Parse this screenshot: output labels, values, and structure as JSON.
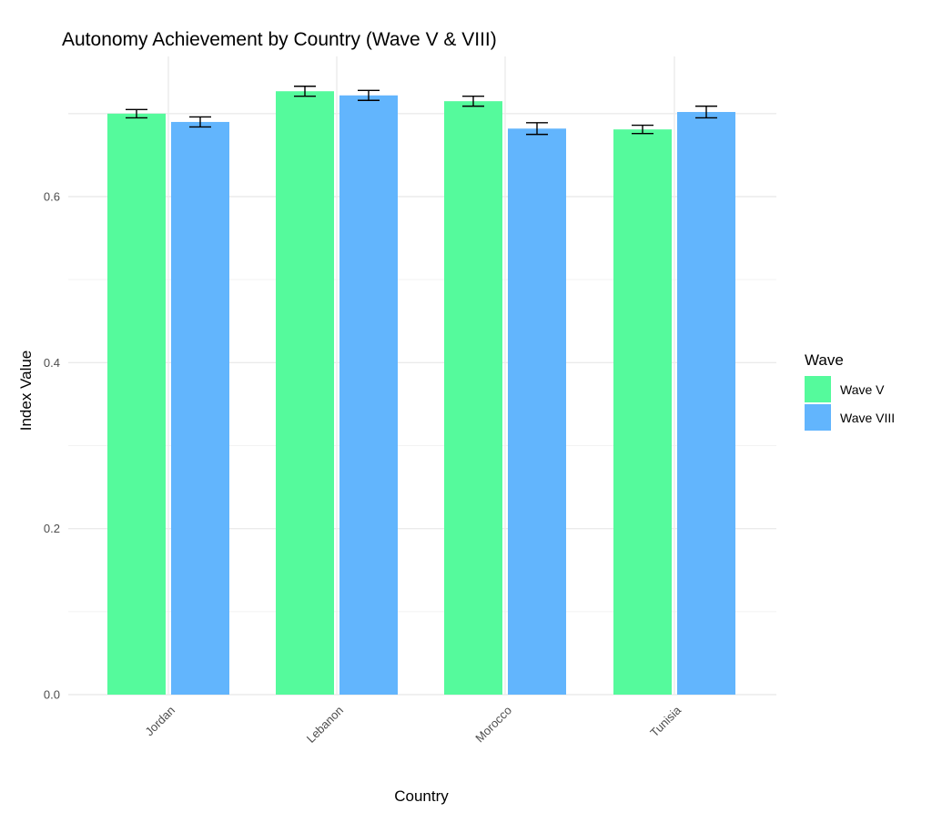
{
  "chart_data": {
    "type": "bar",
    "title": "Autonomy Achievement by Country (Wave V & VIII)",
    "xlabel": "Country",
    "ylabel": "Index Value",
    "categories": [
      "Jordan",
      "Lebanon",
      "Morocco",
      "Tunisia"
    ],
    "series": [
      {
        "name": "Wave V",
        "color": "#55fa9c",
        "values": [
          0.7,
          0.727,
          0.715,
          0.681
        ],
        "error_low": [
          0.695,
          0.721,
          0.709,
          0.676
        ],
        "error_high": [
          0.705,
          0.733,
          0.721,
          0.686
        ]
      },
      {
        "name": "Wave VIII",
        "color": "#62b5fd",
        "values": [
          0.69,
          0.722,
          0.682,
          0.702
        ],
        "error_low": [
          0.684,
          0.716,
          0.675,
          0.695
        ],
        "error_high": [
          0.696,
          0.728,
          0.689,
          0.709
        ]
      }
    ],
    "ylim": [
      0,
      0.74
    ],
    "yticks": [
      0.0,
      0.2,
      0.4,
      0.6
    ],
    "ytick_labels": [
      "0.0",
      "0.2",
      "0.4",
      "0.6"
    ],
    "grid": true,
    "legend": {
      "title": "Wave",
      "position": "right"
    }
  }
}
